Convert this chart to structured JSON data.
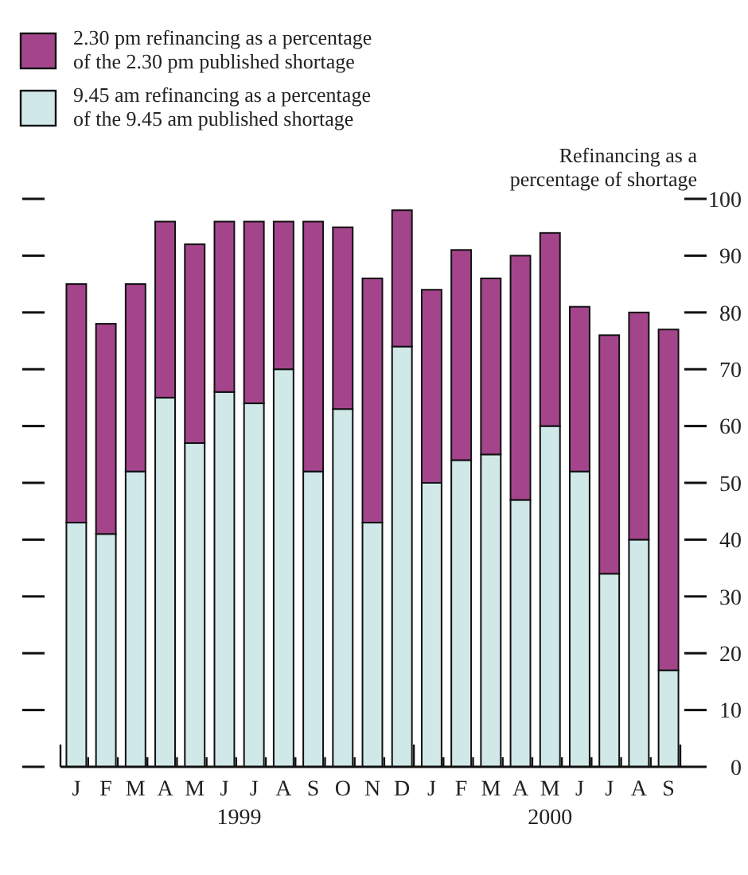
{
  "chart_data": {
    "type": "bar",
    "stacked": true,
    "ylabel": "Refinancing as a percentage of shortage",
    "categories": [
      "J",
      "F",
      "M",
      "A",
      "M",
      "J",
      "J",
      "A",
      "S",
      "O",
      "N",
      "D",
      "J",
      "F",
      "M",
      "A",
      "M",
      "J",
      "J",
      "A",
      "S"
    ],
    "series": [
      {
        "name": "9.45 am refinancing as a percentage of the 9.45 am published shortage",
        "color": "#d0e8e8",
        "values": [
          43,
          41,
          52,
          65,
          57,
          66,
          64,
          70,
          52,
          63,
          43,
          74,
          50,
          54,
          55,
          47,
          60,
          52,
          34,
          40,
          17
        ]
      },
      {
        "name": "2.30 pm refinancing as a percentage of the 2.30 pm published shortage",
        "color": "#a4458c",
        "values": [
          42,
          37,
          33,
          31,
          35,
          30,
          32,
          26,
          44,
          32,
          43,
          24,
          34,
          37,
          31,
          43,
          34,
          29,
          42,
          40,
          60
        ]
      }
    ],
    "ylim": [
      0,
      100
    ],
    "yticks": [
      0,
      10,
      20,
      30,
      40,
      50,
      60,
      70,
      80,
      90,
      100
    ],
    "legend": "top left",
    "grid": false,
    "annotations": [
      "1999",
      "2000"
    ]
  }
}
